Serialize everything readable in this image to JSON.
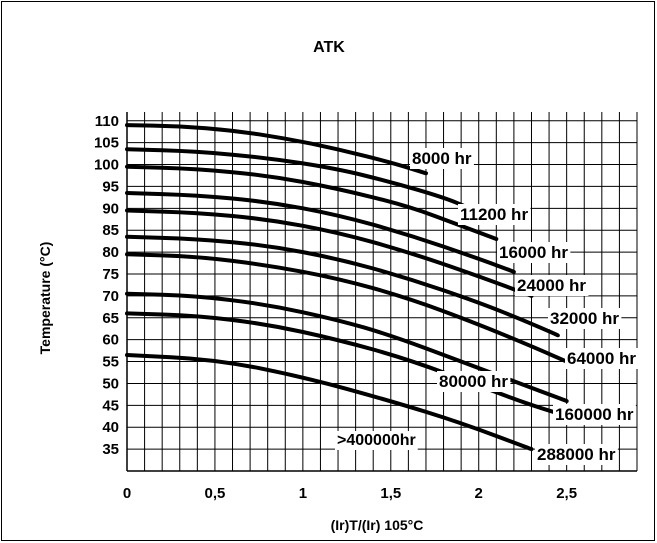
{
  "chart_data": {
    "type": "line",
    "title": "ATK",
    "xlabel": "(Ir)T/(Ir) 105°C",
    "ylabel": "Temperature (°C)",
    "xlim": [
      0,
      2.9
    ],
    "ylim": [
      30,
      112
    ],
    "x_ticks": [
      0,
      0.5,
      1,
      1.5,
      2,
      2.5
    ],
    "x_tick_labels": [
      "0",
      "0,5",
      "1",
      "1,5",
      "2",
      "2,5"
    ],
    "y_ticks": [
      30,
      35,
      40,
      45,
      50,
      55,
      60,
      65,
      70,
      75,
      80,
      85,
      90,
      95,
      100,
      105,
      110
    ],
    "y_tick_labels": [
      "30",
      "35",
      "40",
      "45",
      "50",
      "55",
      "60",
      "65",
      "70",
      "75",
      "80",
      "85",
      "90",
      "95",
      "100",
      "105",
      "110"
    ],
    "grid": true,
    "series": [
      {
        "name": "8000 hr",
        "x": [
          0,
          0.3,
          0.6,
          0.9,
          1.2,
          1.5,
          1.7
        ],
        "y": [
          109,
          108.8,
          107.8,
          106,
          103.5,
          100.5,
          98
        ]
      },
      {
        "name": "11200 hr",
        "x": [
          0,
          0.4,
          0.8,
          1.2,
          1.5,
          1.8,
          1.95
        ],
        "y": [
          103.5,
          103,
          101.5,
          99,
          96,
          92.5,
          90
        ]
      },
      {
        "name": "16000 hr",
        "x": [
          0,
          0.4,
          0.8,
          1.2,
          1.6,
          1.9,
          2.1
        ],
        "y": [
          99.5,
          99,
          97.5,
          94.5,
          90.5,
          86,
          83
        ]
      },
      {
        "name": "24000 hr",
        "x": [
          0,
          0.4,
          0.8,
          1.2,
          1.6,
          2.0,
          2.2
        ],
        "y": [
          93.5,
          93,
          91.5,
          88.5,
          84,
          78.5,
          75.5
        ]
      },
      {
        "name": "32000 hr",
        "x": [
          0,
          0.4,
          0.8,
          1.2,
          1.6,
          2.0,
          2.3
        ],
        "y": [
          89.5,
          89,
          87.5,
          84.5,
          80,
          74.5,
          70
        ]
      },
      {
        "name": "64000 hr",
        "x": [
          0,
          0.4,
          0.8,
          1.2,
          1.6,
          2.0,
          2.25,
          2.45
        ],
        "y": [
          83.5,
          83,
          81.5,
          78.5,
          74,
          68.5,
          64.5,
          61
        ]
      },
      {
        "name": "80000 hr",
        "x": [
          0,
          0.4,
          0.8,
          1.2,
          1.6,
          2.0,
          2.3,
          2.5
        ],
        "y": [
          79.5,
          79,
          77,
          74,
          69.5,
          63.5,
          58.5,
          55
        ]
      },
      {
        "name": "160000 hr",
        "x": [
          0,
          0.4,
          0.8,
          1.2,
          1.5,
          1.9,
          2.2,
          2.5
        ],
        "y": [
          70.5,
          70,
          68,
          64.5,
          61,
          55,
          50.5,
          46
        ]
      },
      {
        "name": "288000 hr",
        "x": [
          0,
          0.4,
          0.8,
          1.2,
          1.6,
          2.0,
          2.3,
          2.55
        ],
        "y": [
          66,
          65.5,
          63.5,
          60,
          55.5,
          49.5,
          45,
          42
        ]
      },
      {
        "name": ">400000hr",
        "x": [
          0,
          0.5,
          1.0,
          1.5,
          1.9,
          2.3
        ],
        "y": [
          56.5,
          55.5,
          51.5,
          46,
          41,
          35
        ]
      }
    ],
    "annotations": [
      "8000 hr",
      "11200 hr",
      "16000 hr",
      "24000 hr",
      "32000 hr",
      "64000 hr",
      "80000 hr",
      "160000 hr",
      ">400000hr",
      "288000 hr"
    ]
  }
}
